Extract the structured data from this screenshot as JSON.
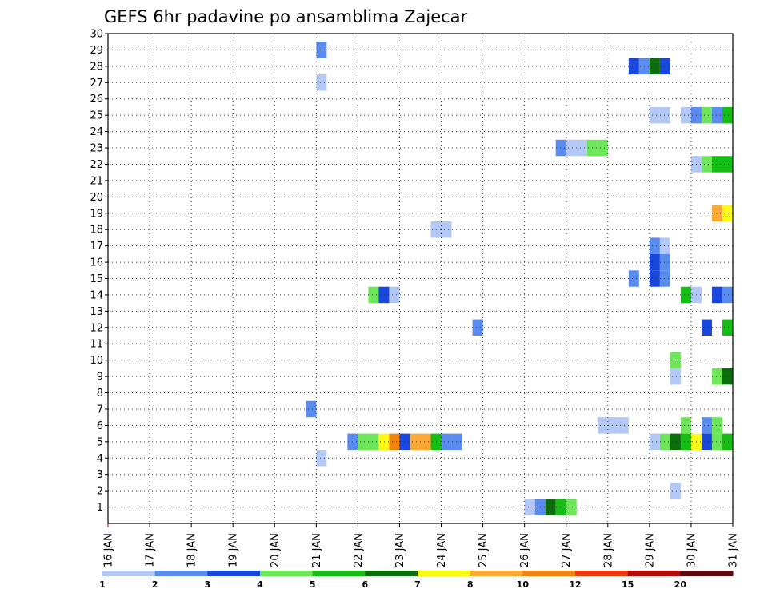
{
  "chart_data": {
    "type": "heatmap",
    "title": "GEFS 6hr padavine po ansamblima Zajecar",
    "x_tick_labels": [
      "16 JAN",
      "17 JAN",
      "18 JAN",
      "19 JAN",
      "20 JAN",
      "21 JAN",
      "22 JAN",
      "23 JAN",
      "24 JAN",
      "25 JAN",
      "26 JAN",
      "27 JAN",
      "28 JAN",
      "29 JAN",
      "30 JAN",
      "31 JAN"
    ],
    "y_ticks": [
      1,
      2,
      3,
      4,
      5,
      6,
      7,
      8,
      9,
      10,
      11,
      12,
      13,
      14,
      15,
      16,
      17,
      18,
      19,
      20,
      21,
      22,
      23,
      24,
      25,
      26,
      27,
      28,
      29,
      30
    ],
    "xlim_days": [
      0,
      15
    ],
    "ylim": [
      0,
      30
    ],
    "grid": true,
    "step_days": 0.25,
    "levels": [
      {
        "label": "1",
        "color": "#b4c8f5"
      },
      {
        "label": "2",
        "color": "#5a8cf0"
      },
      {
        "label": "3",
        "color": "#1946dc"
      },
      {
        "label": "4",
        "color": "#6ee65a"
      },
      {
        "label": "5",
        "color": "#14be14"
      },
      {
        "label": "6",
        "color": "#0a6e0a"
      },
      {
        "label": "7",
        "color": "#fafa14"
      },
      {
        "label": "8",
        "color": "#faaa32"
      },
      {
        "label": "10",
        "color": "#f5820a"
      },
      {
        "label": "12",
        "color": "#e63c0a"
      },
      {
        "label": "15",
        "color": "#b40a0a"
      },
      {
        "label": "20",
        "color": "#5a0a0a"
      }
    ],
    "cells": [
      {
        "member": 29,
        "day": 5.0,
        "level": 2
      },
      {
        "member": 27,
        "day": 5.0,
        "level": 1
      },
      {
        "member": 7,
        "day": 4.75,
        "level": 2
      },
      {
        "member": 4,
        "day": 5.0,
        "level": 1
      },
      {
        "member": 5,
        "day": 5.75,
        "level": 2
      },
      {
        "member": 5,
        "day": 6.0,
        "level": 4
      },
      {
        "member": 5,
        "day": 6.25,
        "level": 4
      },
      {
        "member": 5,
        "day": 6.5,
        "level": 7
      },
      {
        "member": 5,
        "day": 6.75,
        "level": 10
      },
      {
        "member": 5,
        "day": 7.0,
        "level": 3
      },
      {
        "member": 5,
        "day": 7.25,
        "level": 8
      },
      {
        "member": 5,
        "day": 7.5,
        "level": 8
      },
      {
        "member": 5,
        "day": 7.75,
        "level": 5
      },
      {
        "member": 5,
        "day": 8.0,
        "level": 2
      },
      {
        "member": 5,
        "day": 8.25,
        "level": 2
      },
      {
        "member": 14,
        "day": 6.25,
        "level": 4
      },
      {
        "member": 14,
        "day": 6.5,
        "level": 3
      },
      {
        "member": 14,
        "day": 6.75,
        "level": 1
      },
      {
        "member": 18,
        "day": 7.75,
        "level": 1
      },
      {
        "member": 18,
        "day": 8.0,
        "level": 1
      },
      {
        "member": 12,
        "day": 8.75,
        "level": 2
      },
      {
        "member": 1,
        "day": 10.0,
        "level": 1
      },
      {
        "member": 1,
        "day": 10.25,
        "level": 2
      },
      {
        "member": 1,
        "day": 10.5,
        "level": 6
      },
      {
        "member": 1,
        "day": 10.75,
        "level": 5
      },
      {
        "member": 1,
        "day": 11.0,
        "level": 4
      },
      {
        "member": 23,
        "day": 10.75,
        "level": 2
      },
      {
        "member": 23,
        "day": 11.0,
        "level": 1
      },
      {
        "member": 23,
        "day": 11.25,
        "level": 1
      },
      {
        "member": 23,
        "day": 11.5,
        "level": 4
      },
      {
        "member": 23,
        "day": 11.75,
        "level": 4
      },
      {
        "member": 6,
        "day": 11.75,
        "level": 1
      },
      {
        "member": 6,
        "day": 12.0,
        "level": 1
      },
      {
        "member": 6,
        "day": 12.25,
        "level": 1
      },
      {
        "member": 28,
        "day": 12.5,
        "level": 3
      },
      {
        "member": 28,
        "day": 12.75,
        "level": 2
      },
      {
        "member": 28,
        "day": 13.0,
        "level": 6
      },
      {
        "member": 28,
        "day": 13.25,
        "level": 3
      },
      {
        "member": 25,
        "day": 13.0,
        "level": 1
      },
      {
        "member": 25,
        "day": 13.25,
        "level": 1
      },
      {
        "member": 25,
        "day": 13.75,
        "level": 1
      },
      {
        "member": 25,
        "day": 14.0,
        "level": 2
      },
      {
        "member": 25,
        "day": 14.25,
        "level": 4
      },
      {
        "member": 25,
        "day": 14.5,
        "level": 2
      },
      {
        "member": 25,
        "day": 14.75,
        "level": 5
      },
      {
        "member": 22,
        "day": 14.0,
        "level": 1
      },
      {
        "member": 22,
        "day": 14.25,
        "level": 4
      },
      {
        "member": 22,
        "day": 14.5,
        "level": 5
      },
      {
        "member": 22,
        "day": 14.75,
        "level": 5
      },
      {
        "member": 19,
        "day": 14.5,
        "level": 8
      },
      {
        "member": 19,
        "day": 14.75,
        "level": 7
      },
      {
        "member": 17,
        "day": 13.0,
        "level": 2
      },
      {
        "member": 17,
        "day": 13.25,
        "level": 1
      },
      {
        "member": 16,
        "day": 13.0,
        "level": 3
      },
      {
        "member": 16,
        "day": 13.25,
        "level": 2
      },
      {
        "member": 15,
        "day": 12.5,
        "level": 2
      },
      {
        "member": 15,
        "day": 13.0,
        "level": 3
      },
      {
        "member": 15,
        "day": 13.25,
        "level": 2
      },
      {
        "member": 14,
        "day": 13.75,
        "level": 5
      },
      {
        "member": 14,
        "day": 14.0,
        "level": 1
      },
      {
        "member": 14,
        "day": 14.5,
        "level": 3
      },
      {
        "member": 14,
        "day": 14.75,
        "level": 2
      },
      {
        "member": 12,
        "day": 14.25,
        "level": 3
      },
      {
        "member": 12,
        "day": 14.75,
        "level": 5
      },
      {
        "member": 10,
        "day": 13.5,
        "level": 4
      },
      {
        "member": 9,
        "day": 13.5,
        "level": 1
      },
      {
        "member": 9,
        "day": 14.5,
        "level": 4
      },
      {
        "member": 9,
        "day": 14.75,
        "level": 6
      },
      {
        "member": 6,
        "day": 13.75,
        "level": 4
      },
      {
        "member": 6,
        "day": 14.25,
        "level": 2
      },
      {
        "member": 6,
        "day": 14.5,
        "level": 4
      },
      {
        "member": 5,
        "day": 13.0,
        "level": 1
      },
      {
        "member": 5,
        "day": 13.25,
        "level": 4
      },
      {
        "member": 5,
        "day": 13.5,
        "level": 6
      },
      {
        "member": 5,
        "day": 13.75,
        "level": 5
      },
      {
        "member": 5,
        "day": 14.0,
        "level": 7
      },
      {
        "member": 5,
        "day": 14.25,
        "level": 3
      },
      {
        "member": 5,
        "day": 14.5,
        "level": 4
      },
      {
        "member": 5,
        "day": 14.75,
        "level": 5
      },
      {
        "member": 2,
        "day": 13.5,
        "level": 1
      }
    ]
  }
}
